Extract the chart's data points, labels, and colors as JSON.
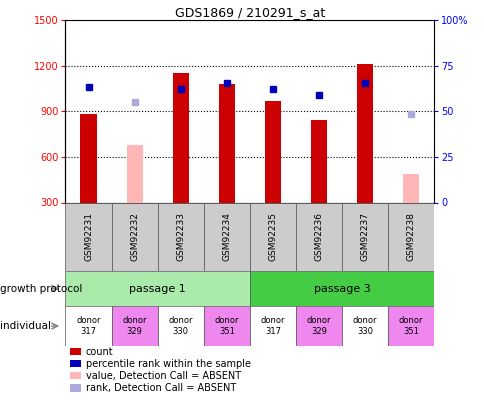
{
  "title": "GDS1869 / 210291_s_at",
  "samples": [
    "GSM92231",
    "GSM92232",
    "GSM92233",
    "GSM92234",
    "GSM92235",
    "GSM92236",
    "GSM92237",
    "GSM92238"
  ],
  "count_values": [
    880,
    null,
    1150,
    1080,
    970,
    840,
    1210,
    null
  ],
  "count_absent_values": [
    null,
    680,
    null,
    null,
    null,
    null,
    null,
    490
  ],
  "percentile_values": [
    1060,
    null,
    1050,
    1090,
    1045,
    1010,
    1090,
    null
  ],
  "percentile_absent_values": [
    null,
    960,
    null,
    null,
    null,
    null,
    null,
    880
  ],
  "ylim_left": [
    300,
    1500
  ],
  "yticks_left": [
    300,
    600,
    900,
    1200,
    1500
  ],
  "yticks_right": [
    0,
    25,
    50,
    75,
    100
  ],
  "bar_color": "#cc0000",
  "bar_absent_color": "#ffb6b6",
  "dot_color": "#0000bb",
  "dot_absent_color": "#aaaadd",
  "passage1_color": "#aaeaaa",
  "passage3_color": "#44cc44",
  "donor_colors": [
    "#ffffff",
    "#ee88ee",
    "#ffffff",
    "#ee88ee",
    "#ffffff",
    "#ee88ee",
    "#ffffff",
    "#ee88ee"
  ],
  "growth_protocol_label": "growth protocol",
  "individual_label": "individual",
  "passages": [
    "passage 1",
    "passage 3"
  ],
  "donors": [
    "donor\n317",
    "donor\n329",
    "donor\n330",
    "donor\n351",
    "donor\n317",
    "donor\n329",
    "donor\n330",
    "donor\n351"
  ],
  "legend_items": [
    {
      "label": "count",
      "color": "#cc0000"
    },
    {
      "label": "percentile rank within the sample",
      "color": "#0000bb"
    },
    {
      "label": "value, Detection Call = ABSENT",
      "color": "#ffb6b6"
    },
    {
      "label": "rank, Detection Call = ABSENT",
      "color": "#aaaadd"
    }
  ]
}
